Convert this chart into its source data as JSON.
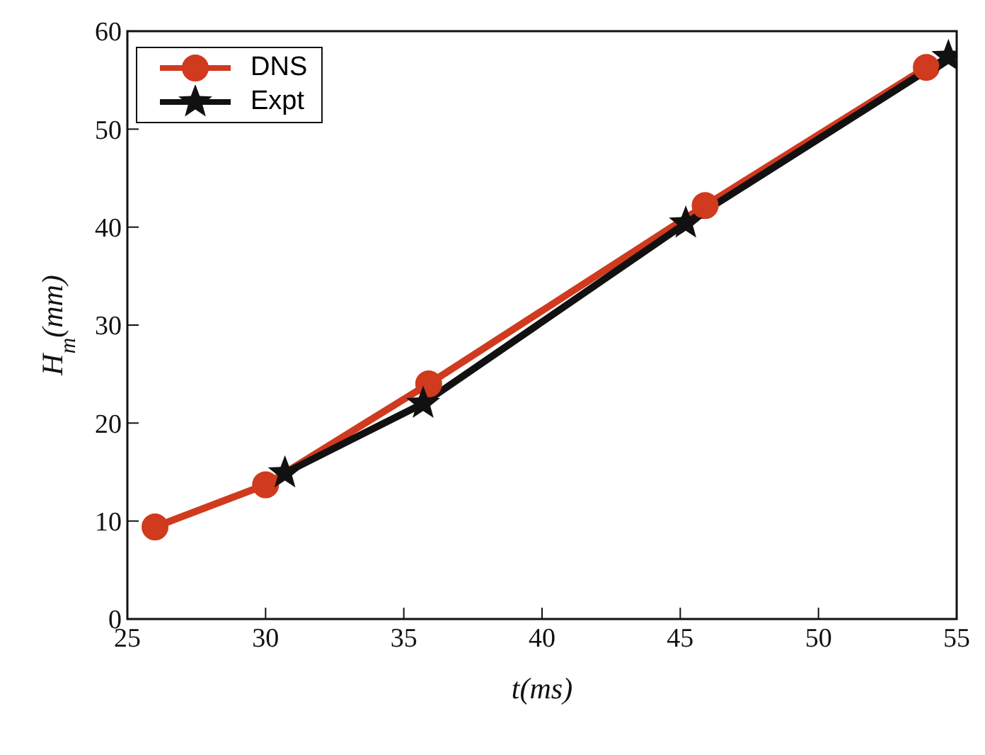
{
  "chart_data": {
    "type": "line",
    "xlabel": "t(ms)",
    "ylabel": "H$_{m}$(mm)",
    "xlim": [
      25,
      55
    ],
    "xticks": [
      25,
      30,
      35,
      40,
      45,
      50,
      55
    ],
    "ylim": [
      0,
      60
    ],
    "yticks": [
      0,
      10,
      20,
      30,
      40,
      50,
      60
    ],
    "grid": false,
    "legend": "top left",
    "line_style": "solid",
    "series": [
      {
        "name": "DNS",
        "color": "#d03a1e",
        "marker": "circle",
        "x": [
          26,
          30,
          35.9,
          45.9,
          53.9
        ],
        "values": [
          9.4,
          13.7,
          24,
          42.2,
          56.3
        ]
      },
      {
        "name": "Expt",
        "color": "#111111",
        "marker": "star",
        "x": [
          30.7,
          35.7,
          45.2,
          54.7
        ],
        "values": [
          14.9,
          22,
          40.4,
          57.4
        ]
      }
    ]
  }
}
